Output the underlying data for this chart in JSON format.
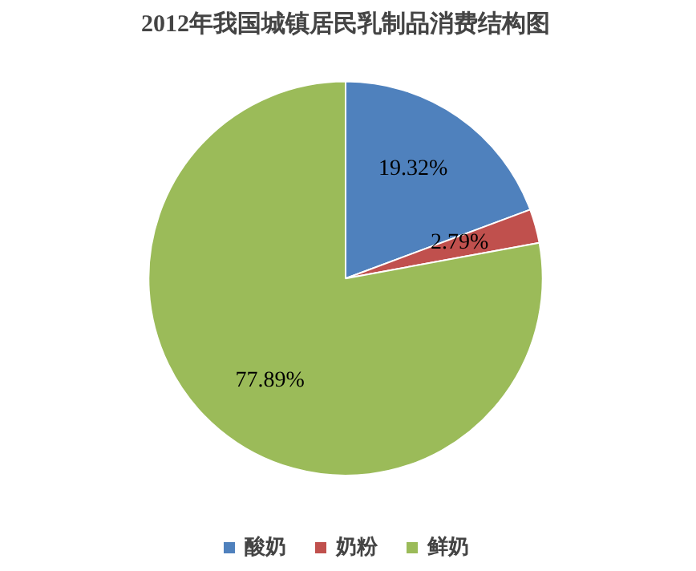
{
  "chart_data": {
    "type": "pie",
    "title": "2012年我国城镇居民乳制品消费结构图",
    "categories": [
      "酸奶",
      "奶粉",
      "鲜奶"
    ],
    "values": [
      19.32,
      2.79,
      77.89
    ],
    "colors": [
      "#4f81bd",
      "#c0504d",
      "#9bbb59"
    ],
    "value_labels": [
      "19.32%",
      "2.79%",
      "77.89%"
    ],
    "legend": "bottom"
  }
}
